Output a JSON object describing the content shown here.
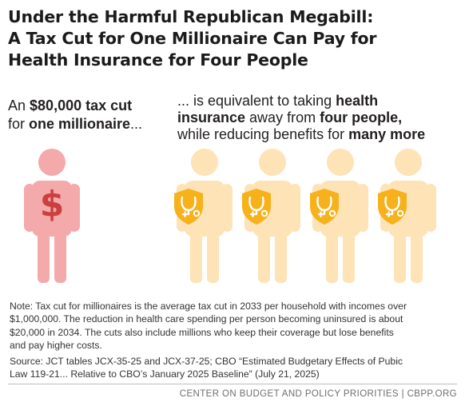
{
  "title": {
    "line1": "Under the Harmful Republican Megabill:",
    "line2": "A Tax Cut for One Millionaire Can Pay for",
    "line3": "Health Insurance for Four People"
  },
  "left_caption": {
    "prefix": "An ",
    "amount": "$80,000 tax cut",
    "line2_prefix": "for ",
    "recipient": "one millionaire",
    "ellipsis": "..."
  },
  "right_caption": {
    "prefix": "... is equivalent to taking ",
    "health": "health",
    "insurance": "insurance",
    "away_from": " away from ",
    "four_people": "four people,",
    "line3_prefix": "while reducing benefits for ",
    "many_more": "many more"
  },
  "figures": {
    "millionaire": {
      "symbol": "$",
      "color": "#f4a9ab",
      "symbol_color": "#c9403f"
    },
    "people": {
      "count": 4,
      "color": "#fde3b6",
      "shield_color": "#f6b11b",
      "icon": "stethoscope-shield-icon"
    }
  },
  "note": {
    "line1": "Note: Tax cut for millionaires is the average tax cut in 2033 per household with incomes over",
    "line2": "$1,000,000. The reduction in health care spending per person becoming uninsured is about",
    "line3": "$20,000 in 2034. The cuts also include millions who keep their coverage but lose benefits",
    "line4": "and pay higher costs."
  },
  "source": {
    "line1": "Source: JCT tables JCX-35-25 and JCX-37-25; CBO “Estimated Budgetary Effects of Pubic",
    "line2": "Law 119-21... Relative to CBO’s January 2025 Baseline” (July 21, 2025)"
  },
  "footer": "CENTER ON BUDGET AND POLICY PRIORITIES | CBPP.ORG"
}
